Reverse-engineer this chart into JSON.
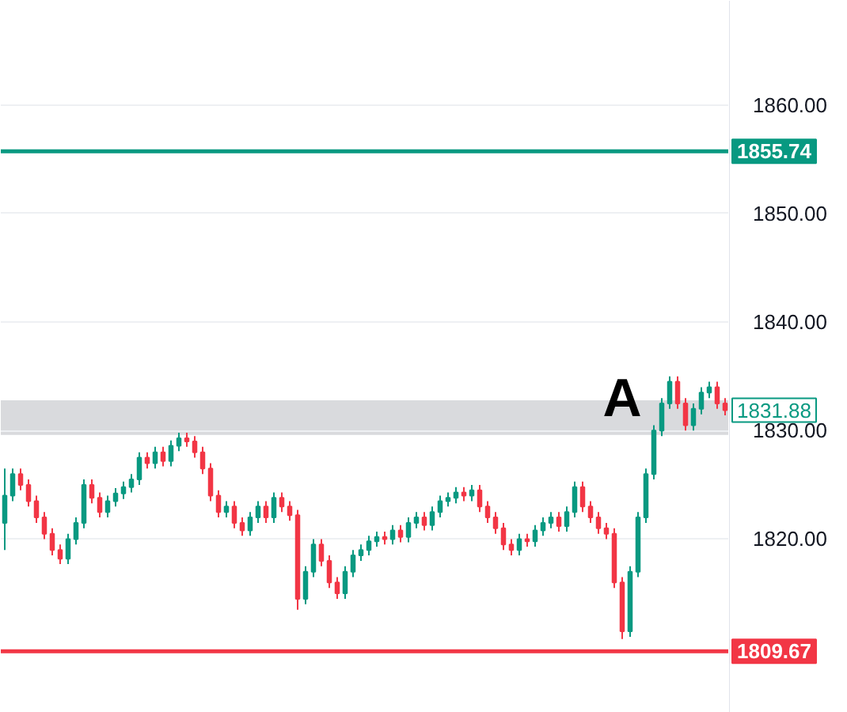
{
  "chart_data": {
    "type": "candlestick",
    "categories": [
      null,
      null,
      null,
      null,
      null,
      null,
      null,
      null,
      null,
      null,
      null,
      null,
      null,
      null,
      null,
      null,
      null,
      null,
      null,
      null,
      null,
      null,
      null,
      null,
      null,
      null,
      null,
      null,
      null,
      null,
      null,
      null,
      null,
      null,
      null,
      null,
      null,
      null,
      null,
      null,
      null,
      null,
      null,
      null,
      null,
      null,
      null,
      null,
      null,
      null,
      null,
      null,
      null,
      null,
      null,
      null,
      null,
      null,
      null,
      null,
      null,
      null,
      null,
      null,
      null,
      null,
      null,
      null,
      null,
      null,
      null,
      null,
      null,
      null,
      null,
      null,
      null,
      null,
      null,
      null,
      null,
      null,
      null,
      null,
      null,
      null,
      null,
      null,
      null,
      null,
      null,
      null
    ],
    "ohlc": [
      [
        1821.5,
        1826.5,
        1819.0,
        1824.0
      ],
      [
        1824.0,
        1826.5,
        1823.5,
        1826.0
      ],
      [
        1826.0,
        1826.5,
        1824.5,
        1825.0
      ],
      [
        1825.0,
        1825.5,
        1823.0,
        1823.5
      ],
      [
        1823.5,
        1824.0,
        1821.5,
        1822.0
      ],
      [
        1822.0,
        1822.5,
        1820.0,
        1820.5
      ],
      [
        1820.5,
        1821.0,
        1818.5,
        1819.0
      ],
      [
        1819.0,
        1819.5,
        1817.7,
        1818.2
      ],
      [
        1818.2,
        1820.5,
        1817.7,
        1820.0
      ],
      [
        1820.0,
        1822.0,
        1819.5,
        1821.5
      ],
      [
        1821.5,
        1825.5,
        1821.0,
        1825.0
      ],
      [
        1825.0,
        1825.5,
        1823.3,
        1823.8
      ],
      [
        1823.8,
        1824.3,
        1822.0,
        1822.5
      ],
      [
        1822.5,
        1824.0,
        1822.0,
        1823.5
      ],
      [
        1823.5,
        1824.7,
        1823.0,
        1824.2
      ],
      [
        1824.2,
        1825.3,
        1823.7,
        1824.8
      ],
      [
        1824.8,
        1826.0,
        1824.3,
        1825.5
      ],
      [
        1825.5,
        1828.0,
        1825.0,
        1827.5
      ],
      [
        1827.5,
        1828.0,
        1826.5,
        1827.0
      ],
      [
        1827.0,
        1828.5,
        1826.5,
        1828.0
      ],
      [
        1828.0,
        1828.5,
        1826.7,
        1827.2
      ],
      [
        1827.2,
        1829.1,
        1826.7,
        1828.6
      ],
      [
        1828.6,
        1829.8,
        1828.1,
        1829.3
      ],
      [
        1829.3,
        1829.8,
        1828.5,
        1829.0
      ],
      [
        1829.0,
        1829.5,
        1827.5,
        1828.0
      ],
      [
        1828.0,
        1828.5,
        1826.0,
        1826.5
      ],
      [
        1826.5,
        1827.0,
        1823.5,
        1824.0
      ],
      [
        1824.0,
        1824.5,
        1822.0,
        1822.5
      ],
      [
        1822.5,
        1823.5,
        1822.0,
        1823.0
      ],
      [
        1823.0,
        1823.5,
        1821.0,
        1821.5
      ],
      [
        1821.5,
        1822.0,
        1820.3,
        1820.8
      ],
      [
        1820.8,
        1822.5,
        1820.3,
        1822.0
      ],
      [
        1822.0,
        1823.5,
        1821.5,
        1823.0
      ],
      [
        1823.0,
        1823.5,
        1821.5,
        1822.0
      ],
      [
        1822.0,
        1824.3,
        1821.5,
        1823.8
      ],
      [
        1823.8,
        1824.3,
        1822.5,
        1823.0
      ],
      [
        1823.0,
        1823.5,
        1821.7,
        1822.2
      ],
      [
        1822.2,
        1822.7,
        1813.5,
        1814.5
      ],
      [
        1814.5,
        1817.5,
        1814.0,
        1817.0
      ],
      [
        1817.0,
        1820.0,
        1816.5,
        1819.5
      ],
      [
        1819.5,
        1820.0,
        1817.5,
        1818.0
      ],
      [
        1818.0,
        1818.5,
        1815.5,
        1816.0
      ],
      [
        1816.0,
        1816.5,
        1814.5,
        1815.0
      ],
      [
        1815.0,
        1817.5,
        1814.5,
        1817.0
      ],
      [
        1817.0,
        1819.0,
        1816.5,
        1818.5
      ],
      [
        1818.5,
        1819.5,
        1818.0,
        1819.0
      ],
      [
        1819.0,
        1820.3,
        1818.5,
        1819.8
      ],
      [
        1819.8,
        1820.7,
        1819.3,
        1820.2
      ],
      [
        1820.2,
        1820.7,
        1819.5,
        1820.0
      ],
      [
        1820.0,
        1821.3,
        1819.5,
        1820.8
      ],
      [
        1820.8,
        1821.3,
        1819.7,
        1820.2
      ],
      [
        1820.2,
        1822.0,
        1819.7,
        1821.5
      ],
      [
        1821.5,
        1822.5,
        1821.0,
        1822.0
      ],
      [
        1822.0,
        1822.5,
        1820.8,
        1821.3
      ],
      [
        1821.3,
        1823.0,
        1820.8,
        1822.5
      ],
      [
        1822.5,
        1824.0,
        1822.0,
        1823.5
      ],
      [
        1823.5,
        1824.3,
        1823.0,
        1823.8
      ],
      [
        1823.8,
        1824.8,
        1823.3,
        1824.3
      ],
      [
        1824.3,
        1824.8,
        1823.5,
        1824.0
      ],
      [
        1824.0,
        1825.0,
        1823.5,
        1824.5
      ],
      [
        1824.5,
        1825.0,
        1822.5,
        1823.0
      ],
      [
        1823.0,
        1823.5,
        1821.5,
        1822.0
      ],
      [
        1822.0,
        1822.5,
        1820.5,
        1821.0
      ],
      [
        1821.0,
        1821.5,
        1819.0,
        1819.5
      ],
      [
        1819.5,
        1820.0,
        1818.5,
        1819.0
      ],
      [
        1819.0,
        1820.5,
        1818.5,
        1820.0
      ],
      [
        1820.0,
        1820.5,
        1819.3,
        1819.8
      ],
      [
        1819.8,
        1821.3,
        1819.3,
        1820.8
      ],
      [
        1820.8,
        1822.0,
        1820.3,
        1821.5
      ],
      [
        1821.5,
        1822.5,
        1821.0,
        1822.0
      ],
      [
        1822.0,
        1822.5,
        1820.7,
        1821.2
      ],
      [
        1821.2,
        1823.0,
        1820.7,
        1822.5
      ],
      [
        1822.5,
        1825.3,
        1822.0,
        1824.8
      ],
      [
        1824.8,
        1825.3,
        1822.5,
        1823.0
      ],
      [
        1823.0,
        1823.5,
        1821.5,
        1822.0
      ],
      [
        1822.0,
        1822.5,
        1820.5,
        1821.0
      ],
      [
        1821.0,
        1821.5,
        1820.0,
        1820.5
      ],
      [
        1820.5,
        1821.0,
        1815.5,
        1816.0
      ],
      [
        1816.0,
        1816.5,
        1810.8,
        1811.5
      ],
      [
        1811.5,
        1817.5,
        1811.0,
        1817.0
      ],
      [
        1817.0,
        1822.5,
        1816.5,
        1822.0
      ],
      [
        1822.0,
        1826.5,
        1821.5,
        1826.0
      ],
      [
        1826.0,
        1830.5,
        1825.5,
        1830.0
      ],
      [
        1830.0,
        1833.0,
        1829.5,
        1832.5
      ],
      [
        1832.5,
        1835.0,
        1832.0,
        1834.5
      ],
      [
        1834.5,
        1835.0,
        1832.0,
        1832.5
      ],
      [
        1832.5,
        1833.0,
        1830.0,
        1830.5
      ],
      [
        1830.5,
        1832.5,
        1830.0,
        1832.0
      ],
      [
        1832.0,
        1834.0,
        1831.5,
        1833.5
      ],
      [
        1833.5,
        1834.5,
        1833.0,
        1834.0
      ],
      [
        1834.0,
        1834.5,
        1832.0,
        1832.5
      ],
      [
        1832.5,
        1833.0,
        1831.4,
        1831.88
      ]
    ],
    "ylim": [
      1804,
      1869.6
    ],
    "yticks": [
      {
        "value": 1820,
        "label": "1820.00"
      },
      {
        "value": 1830,
        "label": "1830.00"
      },
      {
        "value": 1840,
        "label": "1840.00"
      },
      {
        "value": 1850,
        "label": "1850.00"
      },
      {
        "value": 1860,
        "label": "1860.00"
      }
    ],
    "ref_lines": [
      {
        "axis": "y",
        "value": 1855.74,
        "label": "1855.74",
        "color": "#089981",
        "line_style": "solid"
      },
      {
        "axis": "y",
        "value": 1809.67,
        "label": "1809.67",
        "color": "#f23645",
        "line_style": "solid"
      }
    ],
    "bands": [
      {
        "axis": "y",
        "from": 1829.6,
        "to": 1832.8,
        "label": "A",
        "color": "#d9dadd"
      }
    ],
    "annotations": [
      "1831.88"
    ],
    "grid": "y"
  }
}
